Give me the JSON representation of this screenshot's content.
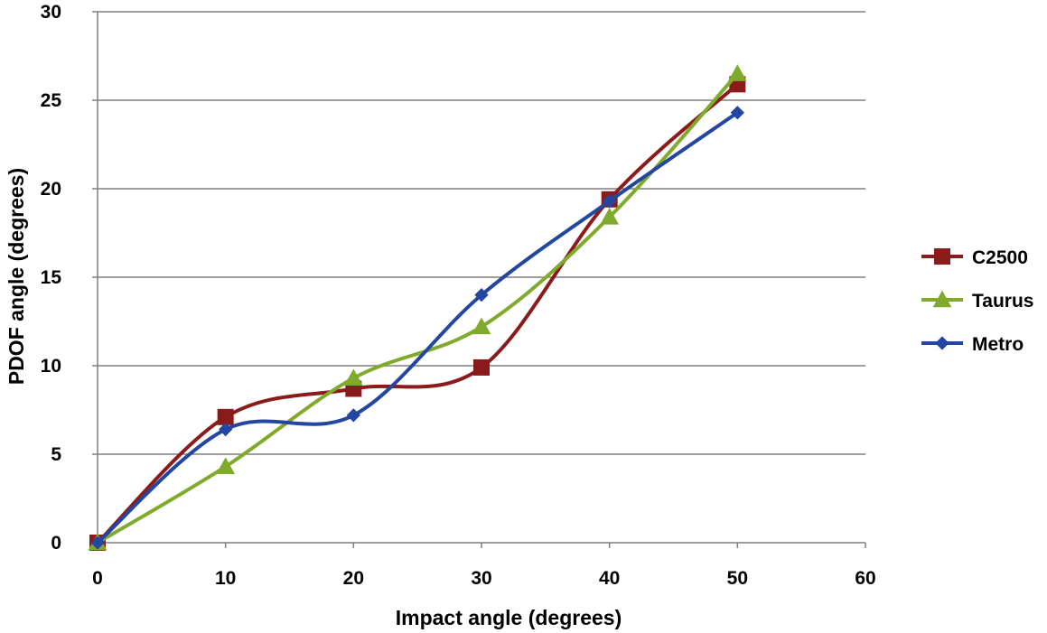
{
  "chart_data": {
    "type": "line",
    "smoothed": true,
    "title": "",
    "xlabel": "Impact angle (degrees)",
    "ylabel": "PDOF angle (degrees)",
    "xlim": [
      0,
      60
    ],
    "ylim": [
      0,
      30
    ],
    "x_ticks": [
      0,
      10,
      20,
      30,
      40,
      50,
      60
    ],
    "y_ticks": [
      0,
      5,
      10,
      15,
      20,
      25,
      30
    ],
    "grid": "horizontal",
    "legend_position": "right",
    "x": [
      0,
      10,
      20,
      30,
      40,
      50
    ],
    "series": [
      {
        "name": "C2500",
        "color": "#8b1a1a",
        "marker": "square",
        "values": [
          0,
          7.1,
          8.7,
          9.9,
          19.4,
          25.9
        ]
      },
      {
        "name": "Taurus",
        "color": "#7faa2b",
        "marker": "triangle",
        "values": [
          0,
          4.3,
          9.3,
          12.2,
          18.4,
          26.5
        ]
      },
      {
        "name": "Metro",
        "color": "#2346a0",
        "marker": "diamond",
        "values": [
          0,
          6.4,
          7.2,
          14.0,
          19.3,
          24.3
        ]
      }
    ]
  }
}
